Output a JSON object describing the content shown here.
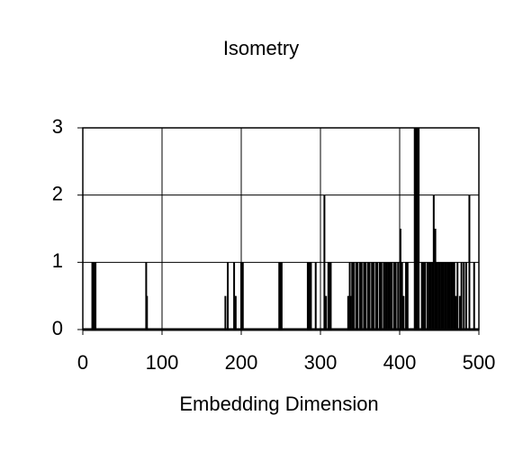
{
  "chart_data": {
    "type": "spike",
    "title": "Isometry",
    "x_label": "Embedding Dimension",
    "x": [
      12,
      13,
      14,
      15,
      16,
      80,
      81,
      180,
      183,
      191,
      193,
      200,
      201,
      202,
      248,
      249,
      250,
      251,
      284,
      285,
      286,
      287,
      288,
      294,
      305,
      307,
      310,
      311,
      312,
      313,
      335,
      337,
      338,
      340,
      342,
      345,
      347,
      350,
      352,
      355,
      357,
      360,
      362,
      365,
      367,
      370,
      372,
      375,
      377,
      380,
      382,
      384,
      386,
      388,
      390,
      393,
      395,
      398,
      401,
      403,
      405,
      408,
      410,
      419,
      420,
      421,
      422,
      423,
      424,
      428,
      430,
      432,
      435,
      437,
      439,
      441,
      443,
      445,
      447,
      449,
      451,
      453,
      455,
      457,
      459,
      461,
      463,
      465,
      467,
      469,
      471,
      473,
      476,
      478,
      481,
      484,
      488,
      494
    ],
    "values": [
      1,
      1,
      1,
      1,
      1,
      1,
      0.5,
      0.5,
      1,
      1,
      0.5,
      1,
      1,
      1,
      1,
      1,
      1,
      1,
      1,
      1,
      1,
      1,
      1,
      1,
      2,
      0.5,
      1,
      1,
      0.5,
      1,
      0.5,
      1,
      0.5,
      1,
      1,
      1,
      1,
      1,
      1,
      1,
      1,
      1,
      1,
      1,
      1,
      1,
      1,
      1,
      1,
      1,
      1,
      1,
      1,
      1,
      1,
      1,
      1,
      1,
      1.5,
      1,
      0.5,
      1,
      1,
      3,
      3,
      3,
      3,
      3,
      3,
      1,
      1,
      1,
      1,
      1,
      1,
      1,
      2,
      1.5,
      1,
      1,
      1,
      1,
      1,
      1,
      1,
      1,
      1,
      1,
      1,
      1,
      0.5,
      1,
      0.5,
      1,
      1,
      1,
      2,
      1
    ],
    "color": "#000000",
    "xlim": [
      0,
      500
    ],
    "xticks": [
      0,
      100,
      200,
      300,
      400,
      500
    ],
    "ylim": [
      0,
      3
    ],
    "yticks": [
      0,
      1,
      2,
      3
    ],
    "grid": true
  }
}
